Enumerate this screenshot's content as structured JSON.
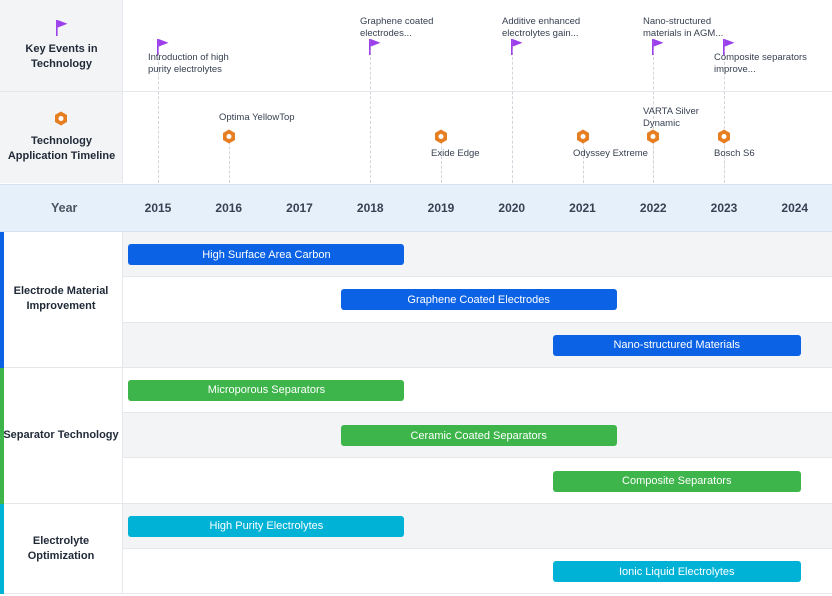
{
  "colors": {
    "flag": "#9b40ea",
    "product": "#e67e22",
    "electrode": "#0c62e4",
    "separator": "#3db54a",
    "electrolyte": "#00b2d6"
  },
  "header": {
    "key_events_label": "Key Events in Technology",
    "key_events_icon": "flag-icon",
    "app_timeline_label": "Technology Application Timeline",
    "app_timeline_icon": "hexagon-icon"
  },
  "year_header": "Year",
  "years": [
    "2015",
    "2016",
    "2017",
    "2018",
    "2019",
    "2020",
    "2021",
    "2022",
    "2023",
    "2024"
  ],
  "chart_data": {
    "type": "gantt",
    "x_axis": {
      "label": "Year",
      "ticks": [
        2015,
        2016,
        2017,
        2018,
        2019,
        2020,
        2021,
        2022,
        2023,
        2024
      ]
    },
    "key_events": [
      {
        "year": 2015,
        "label": "Introduction of high purity electrolytes"
      },
      {
        "year": 2018,
        "label": "Graphene coated electrodes..."
      },
      {
        "year": 2020,
        "label": "Additive enhanced electrolytes gain..."
      },
      {
        "year": 2022,
        "label": "Nano-structured materials in AGM..."
      },
      {
        "year": 2023,
        "label": "Composite separators improve..."
      }
    ],
    "applications": [
      {
        "year": 2016,
        "label": "Optima YellowTop"
      },
      {
        "year": 2019,
        "label": "Exide Edge"
      },
      {
        "year": 2021,
        "label": "Odyssey Extreme"
      },
      {
        "year": 2022,
        "label": "VARTA Silver Dynamic"
      },
      {
        "year": 2023,
        "label": "Bosch S6"
      }
    ],
    "categories": [
      {
        "name": "Electrode Material Improvement",
        "color": "#0c62e4",
        "bars": [
          {
            "label": "High Surface Area Carbon",
            "start": 2014.95,
            "end": 2018.85
          },
          {
            "label": "Graphene Coated Electrodes",
            "start": 2017.95,
            "end": 2021.85
          },
          {
            "label": "Nano-structured Materials",
            "start": 2020.95,
            "end": 2024.45
          }
        ]
      },
      {
        "name": "Separator Technology",
        "color": "#3db54a",
        "bars": [
          {
            "label": "Microporous Separators",
            "start": 2014.95,
            "end": 2018.85
          },
          {
            "label": "Ceramic Coated Separators",
            "start": 2017.95,
            "end": 2021.85
          },
          {
            "label": "Composite Separators",
            "start": 2020.95,
            "end": 2024.45
          }
        ]
      },
      {
        "name": "Electrolyte Optimization",
        "color": "#00b2d6",
        "bars": [
          {
            "label": "High Purity Electrolytes",
            "start": 2014.95,
            "end": 2018.85
          },
          {
            "label": "Ionic Liquid Electrolytes",
            "start": 2020.95,
            "end": 2024.45
          }
        ]
      }
    ]
  }
}
